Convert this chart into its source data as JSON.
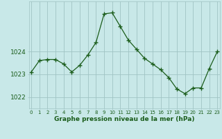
{
  "x": [
    0,
    1,
    2,
    3,
    4,
    5,
    6,
    7,
    8,
    9,
    10,
    11,
    12,
    13,
    14,
    15,
    16,
    17,
    18,
    19,
    20,
    21,
    22,
    23
  ],
  "y": [
    1023.1,
    1023.6,
    1023.65,
    1023.65,
    1023.45,
    1023.1,
    1023.4,
    1023.85,
    1024.4,
    1025.65,
    1025.7,
    1025.1,
    1024.5,
    1024.1,
    1023.7,
    1023.45,
    1023.2,
    1022.85,
    1022.35,
    1022.15,
    1022.4,
    1022.4,
    1023.25,
    1024.0
  ],
  "line_color": "#1a5c1a",
  "marker": "+",
  "marker_size": 4,
  "marker_color": "#1a5c1a",
  "bg_color": "#c8e8e8",
  "grid_color": "#a0c4c4",
  "xlabel": "Graphe pression niveau de la mer (hPa)",
  "xlabel_color": "#1a5c1a",
  "tick_color": "#1a5c1a",
  "ylim": [
    1021.5,
    1026.2
  ],
  "yticks": [
    1022,
    1023,
    1024
  ],
  "xticks": [
    0,
    1,
    2,
    3,
    4,
    5,
    6,
    7,
    8,
    9,
    10,
    11,
    12,
    13,
    14,
    15,
    16,
    17,
    18,
    19,
    20,
    21,
    22,
    23
  ],
  "xlim": [
    -0.3,
    23.3
  ]
}
